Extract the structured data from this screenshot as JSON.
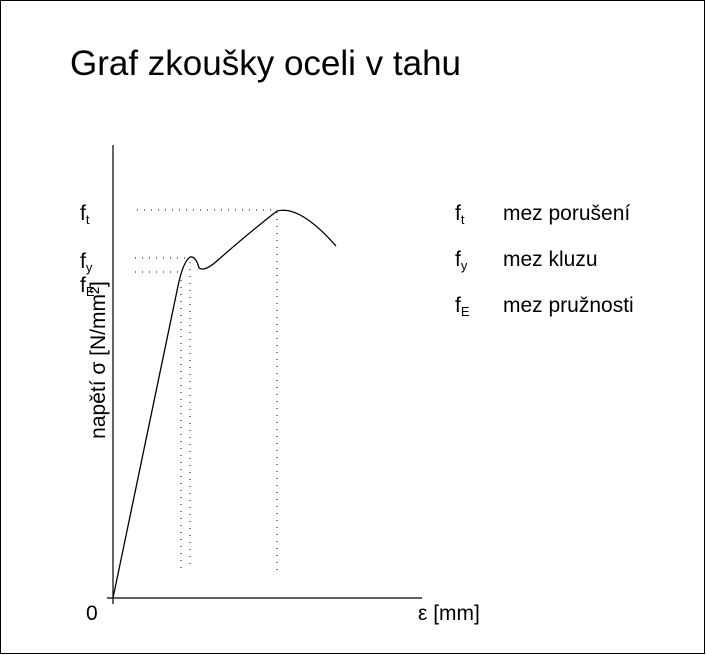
{
  "title": "Graf zkoušky oceli v tahu",
  "axes": {
    "y_label": "napětí σ [N/mm²]",
    "x_label": "ε [mm]",
    "origin": "0"
  },
  "levels": [
    {
      "symbol": "f",
      "subscript": "t",
      "name": "mez porušení"
    },
    {
      "symbol": "f",
      "subscript": "y",
      "name": "mez kluzu"
    },
    {
      "symbol": "f",
      "subscript": "E",
      "name": "mez pružnosti"
    }
  ]
}
